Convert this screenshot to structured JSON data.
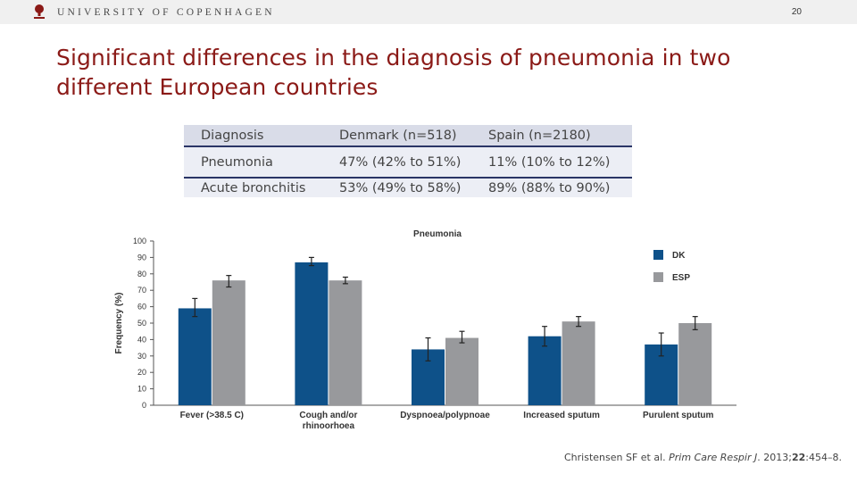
{
  "header": {
    "university": "UNIVERSITY OF COPENHAGEN",
    "slide_number": "20"
  },
  "title": "Significant differences in the diagnosis of pneumonia in two different European countries",
  "table": {
    "columns": [
      "Diagnosis",
      "Denmark (n=518)",
      "Spain (n=2180)"
    ],
    "rows": [
      [
        "Pneumonia",
        "47% (42% to 51%)",
        "11% (10% to 12%)"
      ],
      [
        "Acute bronchitis",
        "53% (49% to 58%)",
        "89% (88% to 90%)"
      ]
    ]
  },
  "chart_data": {
    "type": "bar",
    "title": "Pneumonia",
    "ylabel": "Frequency (%)",
    "xlabel": "",
    "ylim": [
      0,
      100
    ],
    "yticks": [
      0,
      10,
      20,
      30,
      40,
      50,
      60,
      70,
      80,
      90,
      100
    ],
    "categories": [
      "Fever (>38.5 C)",
      "Cough and/or rhinoorhoea",
      "Dyspnoea/polypnoae",
      "Increased sputum",
      "Purulent sputum"
    ],
    "category_lines": [
      [
        "Fever (>38.5 C)"
      ],
      [
        "Cough and/or",
        "rhinoorhoea"
      ],
      [
        "Dyspnoea/polypnoae"
      ],
      [
        "Increased sputum"
      ],
      [
        "Purulent sputum"
      ]
    ],
    "series": [
      {
        "name": "DK",
        "color": "#0e5189",
        "values": [
          59,
          87,
          34,
          42,
          37
        ],
        "err_low": [
          54,
          85,
          27,
          36,
          30
        ],
        "err_high": [
          65,
          90,
          41,
          48,
          44
        ]
      },
      {
        "name": "ESP",
        "color": "#98999c",
        "values": [
          76,
          76,
          41,
          51,
          50
        ],
        "err_low": [
          72,
          74,
          38,
          48,
          46
        ],
        "err_high": [
          79,
          78,
          45,
          54,
          54
        ]
      }
    ],
    "legend": "top-right",
    "grid": false
  },
  "citation": {
    "authors": "Christensen SF et al. ",
    "journal": "Prim Care Respir J",
    "details_a": ". 2013;",
    "volume": "22",
    "details_b": ":454–8."
  }
}
